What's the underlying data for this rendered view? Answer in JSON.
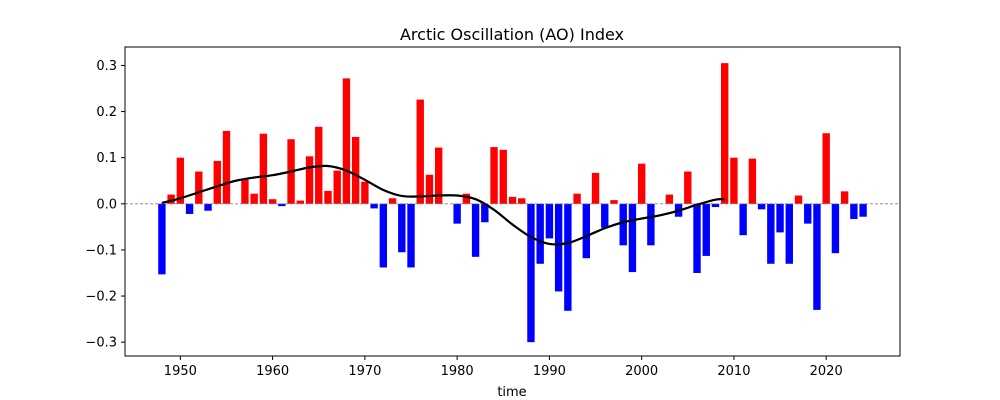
{
  "chart_data": {
    "type": "bar",
    "title": "Arctic Oscillation (AO) Index",
    "xlabel": "time",
    "ylabel": "",
    "xlim": [
      1944,
      2028
    ],
    "ylim": [
      -0.33,
      0.34
    ],
    "xticks": [
      1950,
      1960,
      1970,
      1980,
      1990,
      2000,
      2010,
      2020
    ],
    "yticks": [
      -0.3,
      -0.2,
      -0.1,
      0.0,
      0.1,
      0.2,
      0.3
    ],
    "ytick_labels": [
      "−0.3",
      "−0.2",
      "−0.1",
      "0.0",
      "0.1",
      "0.2",
      "0.3"
    ],
    "grid": false,
    "zero_line": true,
    "colors": {
      "positive": "#ff0000",
      "negative": "#0000ff",
      "smooth": "#000000",
      "zero_line": "#808080"
    },
    "series": [
      {
        "type": "bar",
        "x": [
          1948,
          1949,
          1950,
          1951,
          1952,
          1953,
          1954,
          1955,
          1956,
          1957,
          1958,
          1959,
          1960,
          1961,
          1962,
          1963,
          1964,
          1965,
          1966,
          1967,
          1968,
          1969,
          1970,
          1971,
          1972,
          1973,
          1974,
          1975,
          1976,
          1977,
          1978,
          1979,
          1980,
          1981,
          1982,
          1983,
          1984,
          1985,
          1986,
          1987,
          1988,
          1989,
          1990,
          1991,
          1992,
          1993,
          1994,
          1995,
          1996,
          1997,
          1998,
          1999,
          2000,
          2001,
          2002,
          2003,
          2004,
          2005,
          2006,
          2007,
          2008,
          2009,
          2010,
          2011,
          2012,
          2013,
          2014,
          2015,
          2016,
          2017,
          2018,
          2019,
          2020,
          2021,
          2022,
          2023,
          2024
        ],
        "values": [
          -0.153,
          0.02,
          0.1,
          -0.022,
          0.07,
          -0.015,
          0.093,
          0.158,
          0.0,
          0.053,
          0.022,
          0.152,
          0.01,
          -0.005,
          0.14,
          0.007,
          0.103,
          0.167,
          0.028,
          0.072,
          0.272,
          0.145,
          0.048,
          -0.01,
          -0.138,
          0.012,
          -0.105,
          -0.138,
          0.226,
          0.063,
          0.122,
          0.0,
          -0.043,
          0.022,
          -0.115,
          -0.04,
          0.123,
          0.117,
          0.015,
          0.012,
          -0.3,
          -0.13,
          -0.075,
          -0.19,
          -0.232,
          0.022,
          -0.118,
          0.067,
          -0.052,
          0.008,
          -0.09,
          -0.148,
          0.087,
          -0.09,
          0.0,
          0.02,
          -0.028,
          0.07,
          -0.15,
          -0.113,
          -0.007,
          0.305,
          0.1,
          -0.068,
          0.098,
          -0.012,
          -0.13,
          -0.062,
          -0.13,
          0.018,
          -0.043,
          -0.23,
          0.153,
          -0.107,
          0.027,
          -0.033,
          -0.028
        ]
      },
      {
        "type": "line",
        "name": "",
        "x": [
          1948,
          1950,
          1952,
          1954,
          1956,
          1958,
          1960,
          1962,
          1964,
          1966,
          1968,
          1970,
          1972,
          1974,
          1976,
          1978,
          1980,
          1982,
          1984,
          1986,
          1988,
          1990,
          1992,
          1994,
          1996,
          1998,
          2000,
          2002,
          2004,
          2006,
          2008,
          2009
        ],
        "values": [
          0.002,
          0.012,
          0.025,
          0.038,
          0.05,
          0.057,
          0.062,
          0.07,
          0.079,
          0.082,
          0.072,
          0.052,
          0.03,
          0.017,
          0.016,
          0.018,
          0.018,
          0.01,
          -0.013,
          -0.045,
          -0.072,
          -0.087,
          -0.085,
          -0.07,
          -0.053,
          -0.04,
          -0.032,
          -0.025,
          -0.015,
          -0.002,
          0.009,
          0.01
        ]
      }
    ]
  }
}
